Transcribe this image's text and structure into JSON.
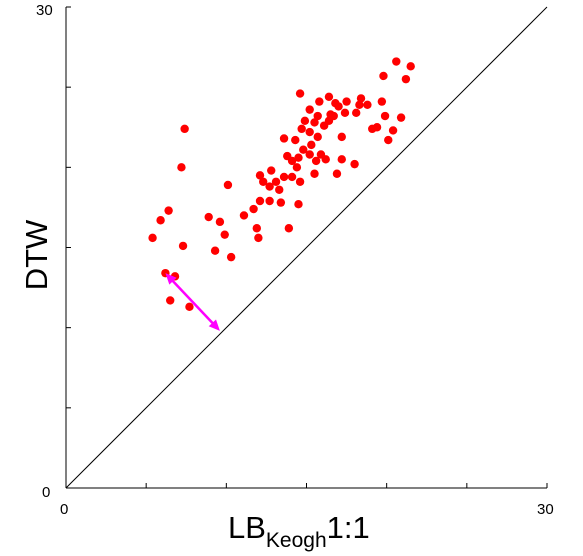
{
  "chart_data": {
    "type": "scatter",
    "xlabel": "LB",
    "xlabel_subscript": "Keogh",
    "xlabel_suffix": "1:1",
    "ylabel": "DTW",
    "xlim": [
      0,
      30
    ],
    "ylim": [
      0,
      30
    ],
    "x_tick_labels": {
      "min": "0",
      "max": "30"
    },
    "y_tick_labels": {
      "min": "0",
      "max": "30"
    },
    "x_minor_ticks": [
      5,
      10,
      15,
      20,
      25
    ],
    "y_minor_ticks": [
      5,
      10,
      15,
      20,
      25
    ],
    "grid": false,
    "diagonal_reference": {
      "from": [
        0,
        0
      ],
      "to": [
        30,
        30
      ],
      "color": "#000000"
    },
    "series": [
      {
        "color": "#ff0000",
        "points": [
          [
            5.4,
            15.6
          ],
          [
            5.9,
            16.7
          ],
          [
            7.2,
            20.0
          ],
          [
            7.4,
            22.4
          ],
          [
            6.2,
            13.4
          ],
          [
            6.4,
            17.3
          ],
          [
            7.3,
            15.1
          ],
          [
            9.6,
            16.6
          ],
          [
            6.5,
            11.7
          ],
          [
            6.8,
            13.2
          ],
          [
            7.7,
            11.3
          ],
          [
            9.3,
            14.8
          ],
          [
            10.1,
            18.9
          ],
          [
            8.9,
            16.9
          ],
          [
            9.9,
            15.8
          ],
          [
            10.3,
            14.4
          ],
          [
            11.1,
            17.0
          ],
          [
            11.7,
            17.4
          ],
          [
            11.9,
            16.2
          ],
          [
            12.0,
            15.6
          ],
          [
            12.1,
            17.9
          ],
          [
            12.7,
            17.9
          ],
          [
            13.9,
            16.2
          ],
          [
            14.5,
            17.7
          ],
          [
            12.1,
            19.5
          ],
          [
            12.3,
            19.1
          ],
          [
            12.7,
            18.8
          ],
          [
            13.3,
            18.6
          ],
          [
            13.6,
            19.4
          ],
          [
            14.1,
            19.4
          ],
          [
            14.6,
            19.1
          ],
          [
            15.5,
            19.6
          ],
          [
            12.8,
            19.8
          ],
          [
            13.1,
            19.1
          ],
          [
            13.8,
            20.7
          ],
          [
            14.4,
            20.0
          ],
          [
            14.8,
            21.1
          ],
          [
            15.2,
            20.8
          ],
          [
            15.9,
            20.8
          ],
          [
            17.2,
            20.5
          ],
          [
            14.3,
            21.7
          ],
          [
            14.7,
            22.4
          ],
          [
            15.2,
            22.2
          ],
          [
            15.7,
            21.9
          ],
          [
            16.1,
            22.6
          ],
          [
            16.4,
            22.9
          ],
          [
            15.5,
            22.8
          ],
          [
            15.2,
            23.6
          ],
          [
            16.5,
            23.3
          ],
          [
            17.0,
            23.8
          ],
          [
            16.7,
            23.2
          ],
          [
            17.5,
            24.1
          ],
          [
            18.1,
            23.4
          ],
          [
            18.3,
            23.9
          ],
          [
            19.1,
            22.4
          ],
          [
            18.8,
            23.9
          ],
          [
            18.4,
            24.3
          ],
          [
            19.4,
            22.5
          ],
          [
            19.8,
            25.7
          ],
          [
            19.7,
            24.1
          ],
          [
            19.9,
            23.2
          ],
          [
            20.4,
            22.3
          ],
          [
            20.1,
            21.7
          ],
          [
            21.2,
            25.5
          ],
          [
            20.9,
            23.1
          ],
          [
            21.5,
            26.3
          ],
          [
            20.6,
            26.6
          ],
          [
            14.6,
            24.6
          ],
          [
            15.8,
            24.1
          ],
          [
            16.4,
            24.4
          ],
          [
            16.8,
            24.0
          ],
          [
            17.4,
            23.4
          ],
          [
            14.9,
            22.9
          ],
          [
            15.6,
            20.4
          ],
          [
            16.2,
            20.5
          ],
          [
            16.9,
            19.6
          ],
          [
            18.0,
            20.2
          ],
          [
            13.6,
            21.8
          ],
          [
            14.1,
            20.4
          ],
          [
            13.4,
            17.8
          ],
          [
            14.5,
            20.6
          ],
          [
            15.3,
            21.4
          ],
          [
            15.7,
            23.2
          ],
          [
            17.2,
            21.9
          ]
        ]
      }
    ],
    "annotation": {
      "type": "double-arrow",
      "color": "#ff00ff",
      "from": [
        6.2,
        13.4
      ],
      "to": [
        9.6,
        9.8
      ]
    }
  }
}
